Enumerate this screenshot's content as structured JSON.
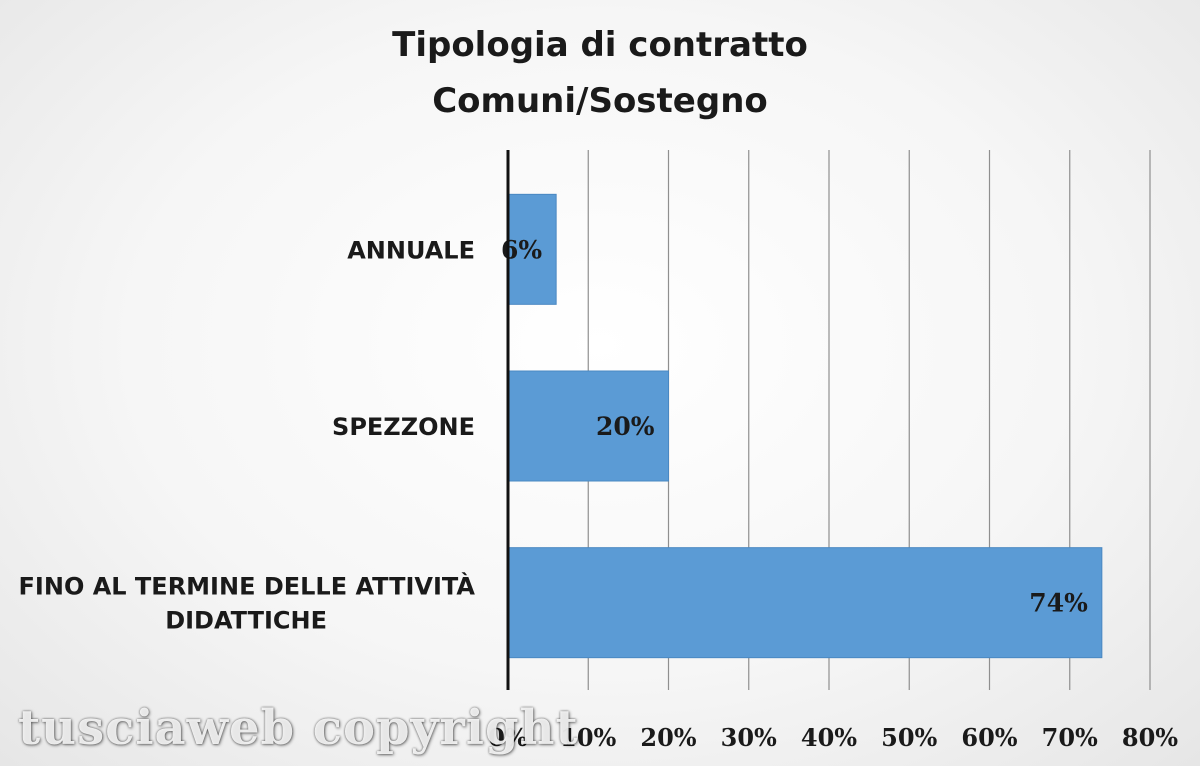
{
  "chart_data": {
    "type": "bar",
    "orientation": "horizontal",
    "title": [
      "Tipologia di contratto",
      "Comuni/Sostegno"
    ],
    "categories": [
      [
        "ANNUALE"
      ],
      [
        "SPEZZONE"
      ],
      [
        "FINO AL TERMINE DELLE ATTIVITÀ",
        "DIDATTICHE"
      ]
    ],
    "values": [
      6,
      20,
      74
    ],
    "data_labels": [
      "6%",
      "20%",
      "74%"
    ],
    "xlim": [
      0,
      80
    ],
    "ticks": [
      "0%",
      "10%",
      "20%",
      "30%",
      "40%",
      "50%",
      "60%",
      "70%",
      "80%"
    ],
    "grid": "vertical",
    "bar_color": "#5b9bd5"
  },
  "watermark": "tusciaweb copyright"
}
